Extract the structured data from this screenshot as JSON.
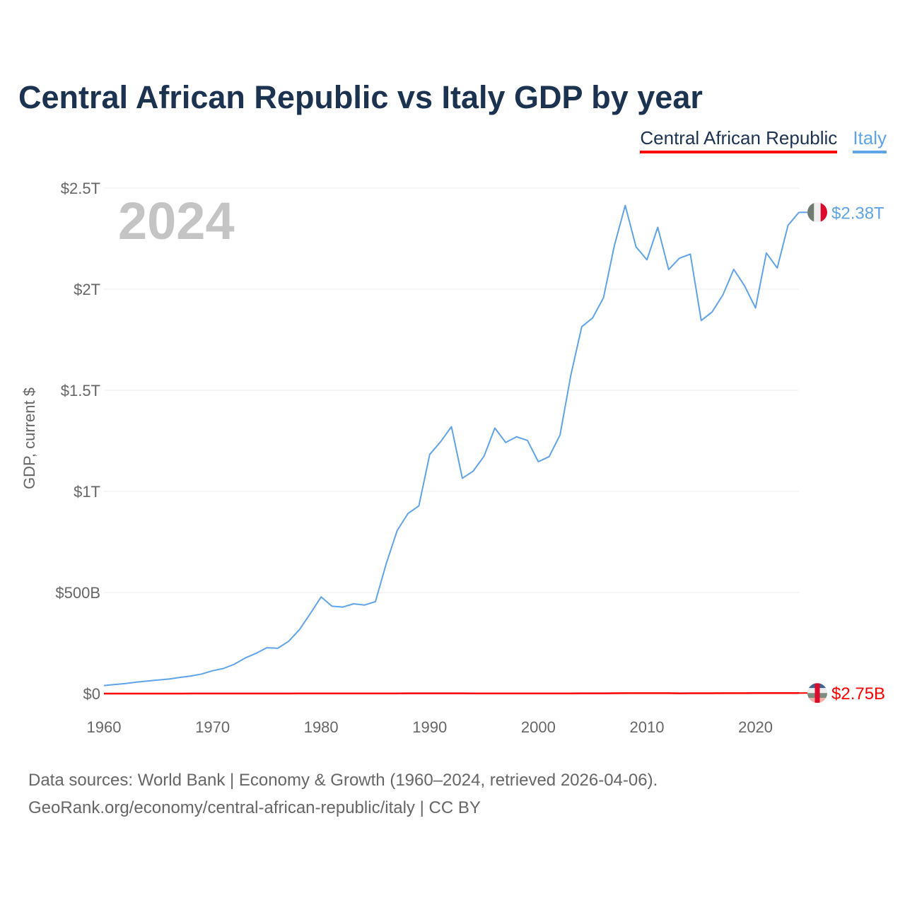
{
  "title": "Central African Republic vs Italy GDP by year",
  "legend": [
    "Central African Republic",
    "Italy"
  ],
  "footer": {
    "line1": "Data sources: World Bank | Economy & Growth (1960–2024, retrieved 2026-04-06).",
    "line2": "GeoRank.org/economy/central-african-republic/italy | CC BY"
  },
  "chart_data": {
    "type": "line",
    "title": "Central African Republic vs Italy GDP by year",
    "xlabel": "",
    "ylabel": "GDP, current $",
    "year_label": "2024",
    "xlim": [
      1960,
      2024
    ],
    "ylim": [
      0,
      2.5
    ],
    "unit": "trillion USD",
    "x_ticks": [
      1960,
      1970,
      1980,
      1990,
      2000,
      2010,
      2020
    ],
    "y_ticks": [
      0,
      0.5,
      1,
      1.5,
      2,
      2.5
    ],
    "y_tick_labels": [
      "$0",
      "$500B",
      "$1T",
      "$1.5T",
      "$2T",
      "$2.5T"
    ],
    "grid": true,
    "legend_position": "top-right",
    "series": [
      {
        "name": "Italy",
        "color": "#5fa3e8",
        "end_label": "$2.38T",
        "start_year": 1960,
        "values": [
          0.04,
          0.045,
          0.05,
          0.057,
          0.062,
          0.067,
          0.072,
          0.08,
          0.087,
          0.097,
          0.113,
          0.124,
          0.145,
          0.176,
          0.199,
          0.227,
          0.224,
          0.258,
          0.316,
          0.395,
          0.478,
          0.432,
          0.428,
          0.444,
          0.438,
          0.455,
          0.643,
          0.806,
          0.891,
          0.928,
          1.183,
          1.245,
          1.32,
          1.065,
          1.1,
          1.174,
          1.313,
          1.242,
          1.27,
          1.252,
          1.147,
          1.172,
          1.279,
          1.577,
          1.814,
          1.858,
          1.957,
          2.215,
          2.414,
          2.209,
          2.145,
          2.306,
          2.097,
          2.153,
          2.173,
          1.845,
          1.887,
          1.972,
          2.098,
          2.016,
          1.907,
          2.179,
          2.105,
          2.316,
          2.38
        ]
      },
      {
        "name": "Central African Republic",
        "color": "#ff0000",
        "end_label": "$2.75B",
        "start_year": 1960,
        "values": [
          0.00011,
          0.00012,
          0.00012,
          0.00013,
          0.00014,
          0.00015,
          0.00016,
          0.00017,
          0.00018,
          0.00019,
          0.0002,
          0.00022,
          0.00025,
          0.0003,
          0.00034,
          0.00037,
          0.00044,
          0.00052,
          0.00061,
          0.00073,
          0.0008,
          0.0007,
          0.00067,
          0.00061,
          0.00059,
          0.00087,
          0.0011,
          0.0012,
          0.0013,
          0.0013,
          0.00149,
          0.00147,
          0.00151,
          0.00128,
          0.00088,
          0.00112,
          0.00104,
          0.00094,
          0.00102,
          0.00103,
          0.00091,
          0.00093,
          0.00102,
          0.0012,
          0.0013,
          0.00135,
          0.00147,
          0.0017,
          0.00198,
          0.00198,
          0.00199,
          0.00221,
          0.00218,
          0.00152,
          0.00178,
          0.00158,
          0.00169,
          0.00198,
          0.00222,
          0.00222,
          0.00238,
          0.00257,
          0.00252,
          0.00255,
          0.00275
        ]
      }
    ]
  }
}
